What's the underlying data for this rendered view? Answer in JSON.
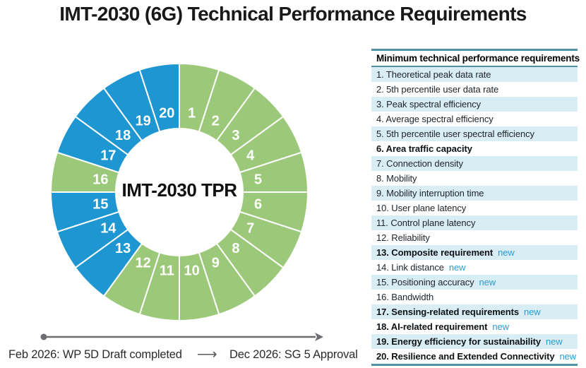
{
  "title": "IMT-2030 (6G) Technical Performance Requirements",
  "colors": {
    "green": "#9cc979",
    "blue": "#1e96d1",
    "row_alt": "#d9edf5",
    "table_border": "#4e93a3",
    "new_label": "#2b9cd1",
    "timeline_gray": "#6d6e71",
    "segment_divider": "#ffffff",
    "title_text": "#191919"
  },
  "chart_data": {
    "type": "pie",
    "style": "donut",
    "center_label": "IMT-2030 TPR",
    "direction": "clockwise",
    "start_angle_deg": 0,
    "legend_position": "none",
    "segments": [
      {
        "label": "1",
        "value": 1,
        "color": "green"
      },
      {
        "label": "2",
        "value": 1,
        "color": "green"
      },
      {
        "label": "3",
        "value": 1,
        "color": "green"
      },
      {
        "label": "4",
        "value": 1,
        "color": "green"
      },
      {
        "label": "5",
        "value": 1,
        "color": "green"
      },
      {
        "label": "6",
        "value": 1,
        "color": "green"
      },
      {
        "label": "7",
        "value": 1,
        "color": "green"
      },
      {
        "label": "8",
        "value": 1,
        "color": "green"
      },
      {
        "label": "9",
        "value": 1,
        "color": "green"
      },
      {
        "label": "10",
        "value": 1,
        "color": "green"
      },
      {
        "label": "11",
        "value": 1,
        "color": "green"
      },
      {
        "label": "12",
        "value": 1,
        "color": "green"
      },
      {
        "label": "13",
        "value": 1,
        "color": "blue"
      },
      {
        "label": "14",
        "value": 1,
        "color": "blue"
      },
      {
        "label": "15",
        "value": 1,
        "color": "blue"
      },
      {
        "label": "16",
        "value": 1,
        "color": "green"
      },
      {
        "label": "17",
        "value": 1,
        "color": "blue"
      },
      {
        "label": "18",
        "value": 1,
        "color": "blue"
      },
      {
        "label": "19",
        "value": 1,
        "color": "blue"
      },
      {
        "label": "20",
        "value": 1,
        "color": "blue"
      }
    ]
  },
  "table": {
    "header": "Minimum technical performance requirements",
    "new_label": "new",
    "rows": [
      {
        "text": "1. Theoretical peak data rate",
        "bold": false,
        "new": false
      },
      {
        "text": "2. 5th percentile user data rate",
        "bold": false,
        "new": false
      },
      {
        "text": "3. Peak spectral efficiency",
        "bold": false,
        "new": false
      },
      {
        "text": "4. Average spectral efficiency",
        "bold": false,
        "new": false
      },
      {
        "text": "5. 5th percentile user spectral efficiency",
        "bold": false,
        "new": false
      },
      {
        "text": "6. Area traffic capacity",
        "bold": true,
        "new": false
      },
      {
        "text": "7. Connection density",
        "bold": false,
        "new": false
      },
      {
        "text": "8. Mobility",
        "bold": false,
        "new": false
      },
      {
        "text": "9. Mobility interruption time",
        "bold": false,
        "new": false
      },
      {
        "text": "10. User plane latency",
        "bold": false,
        "new": false
      },
      {
        "text": "11. Control plane latency",
        "bold": false,
        "new": false
      },
      {
        "text": "12. Reliability",
        "bold": false,
        "new": false
      },
      {
        "text": "13. Composite requirement",
        "bold": true,
        "new": true
      },
      {
        "text": "14. Link distance",
        "bold": false,
        "new": true
      },
      {
        "text": "15. Positioning accuracy",
        "bold": false,
        "new": true
      },
      {
        "text": "16. Bandwidth",
        "bold": false,
        "new": false
      },
      {
        "text": "17. Sensing-related requirements",
        "bold": true,
        "new": true
      },
      {
        "text": "18. AI-related requirement",
        "bold": true,
        "new": true
      },
      {
        "text": "19. Energy efficiency for sustainability",
        "bold": true,
        "new": true
      },
      {
        "text": "20. Resilience and Extended Connectivity",
        "bold": true,
        "new": true
      }
    ]
  },
  "timeline": {
    "left_label": "Feb 2026: WP 5D Draft completed",
    "arrow": "⟶",
    "right_label": "Dec 2026: SG 5 Approval"
  }
}
